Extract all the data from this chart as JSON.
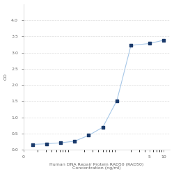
{
  "x": [
    0.0156,
    0.0313,
    0.0625,
    0.125,
    0.25,
    0.5,
    1,
    2,
    5,
    10
  ],
  "y": [
    0.17,
    0.19,
    0.22,
    0.27,
    0.45,
    0.7,
    1.52,
    3.22,
    3.28,
    3.38
  ],
  "line_color": "#a8c8e8",
  "marker_color": "#1a3a6b",
  "marker_size": 3.5,
  "marker_style": "s",
  "xlabel_line1": "Human DNA Repair Protein RAD50 (RAD50)",
  "xlabel_line2": "Concentration (ng/ml)",
  "ylabel": "OD",
  "xlim_log": [
    -2.2,
    1.2
  ],
  "ylim": [
    0,
    4.5
  ],
  "yticks": [
    0,
    0.5,
    1,
    1.5,
    2,
    2.5,
    3,
    3.5,
    4
  ],
  "xtick_vals": [
    0.01,
    5,
    10
  ],
  "xtick_labels": [
    "0",
    "5",
    "10"
  ],
  "grid_color": "#dddddd",
  "background_color": "#ffffff",
  "label_fontsize": 4.5,
  "tick_fontsize": 4.5
}
